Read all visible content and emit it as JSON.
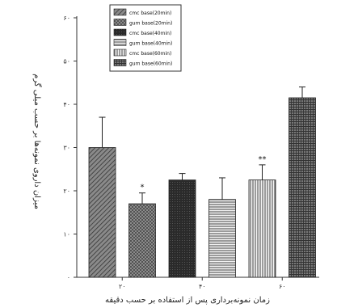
{
  "chart_data": {
    "type": "bar",
    "ylabel": "میزان داروی نمونه‌ها بر حسب میلی گرم",
    "xlabel": "زمان نمونه‌برداری پس از استفاده بر حسب دقیقه",
    "ytick_labels": [
      "۰",
      "۱۰",
      "۲۰",
      "۳۰",
      "۴۰",
      "۵۰",
      "۶۰"
    ],
    "ytick_values": [
      0,
      10,
      20,
      30,
      40,
      50,
      60
    ],
    "ylim": [
      0,
      60
    ],
    "xtick_labels": [
      "۲۰",
      "۴۰",
      "۶۰"
    ],
    "series": [
      {
        "name": "cmc base(20min)",
        "value": 30,
        "error": 7,
        "annotation": "",
        "pattern": "diag"
      },
      {
        "name": "gum base(20min)",
        "value": 17,
        "error": 2.5,
        "annotation": "*",
        "pattern": "cross"
      },
      {
        "name": "cmc base(40min)",
        "value": 22.5,
        "error": 1.5,
        "annotation": "",
        "pattern": "dark"
      },
      {
        "name": "gum base(40min)",
        "value": 18,
        "error": 5,
        "annotation": "",
        "pattern": "hlines"
      },
      {
        "name": "cmc base(60min)",
        "value": 22.5,
        "error": 3.5,
        "annotation": "**",
        "pattern": "vlines"
      },
      {
        "name": "gum base(60min)",
        "value": 41.5,
        "error": 2.5,
        "annotation": "",
        "pattern": "grid"
      }
    ],
    "legend_position": "top-left"
  }
}
